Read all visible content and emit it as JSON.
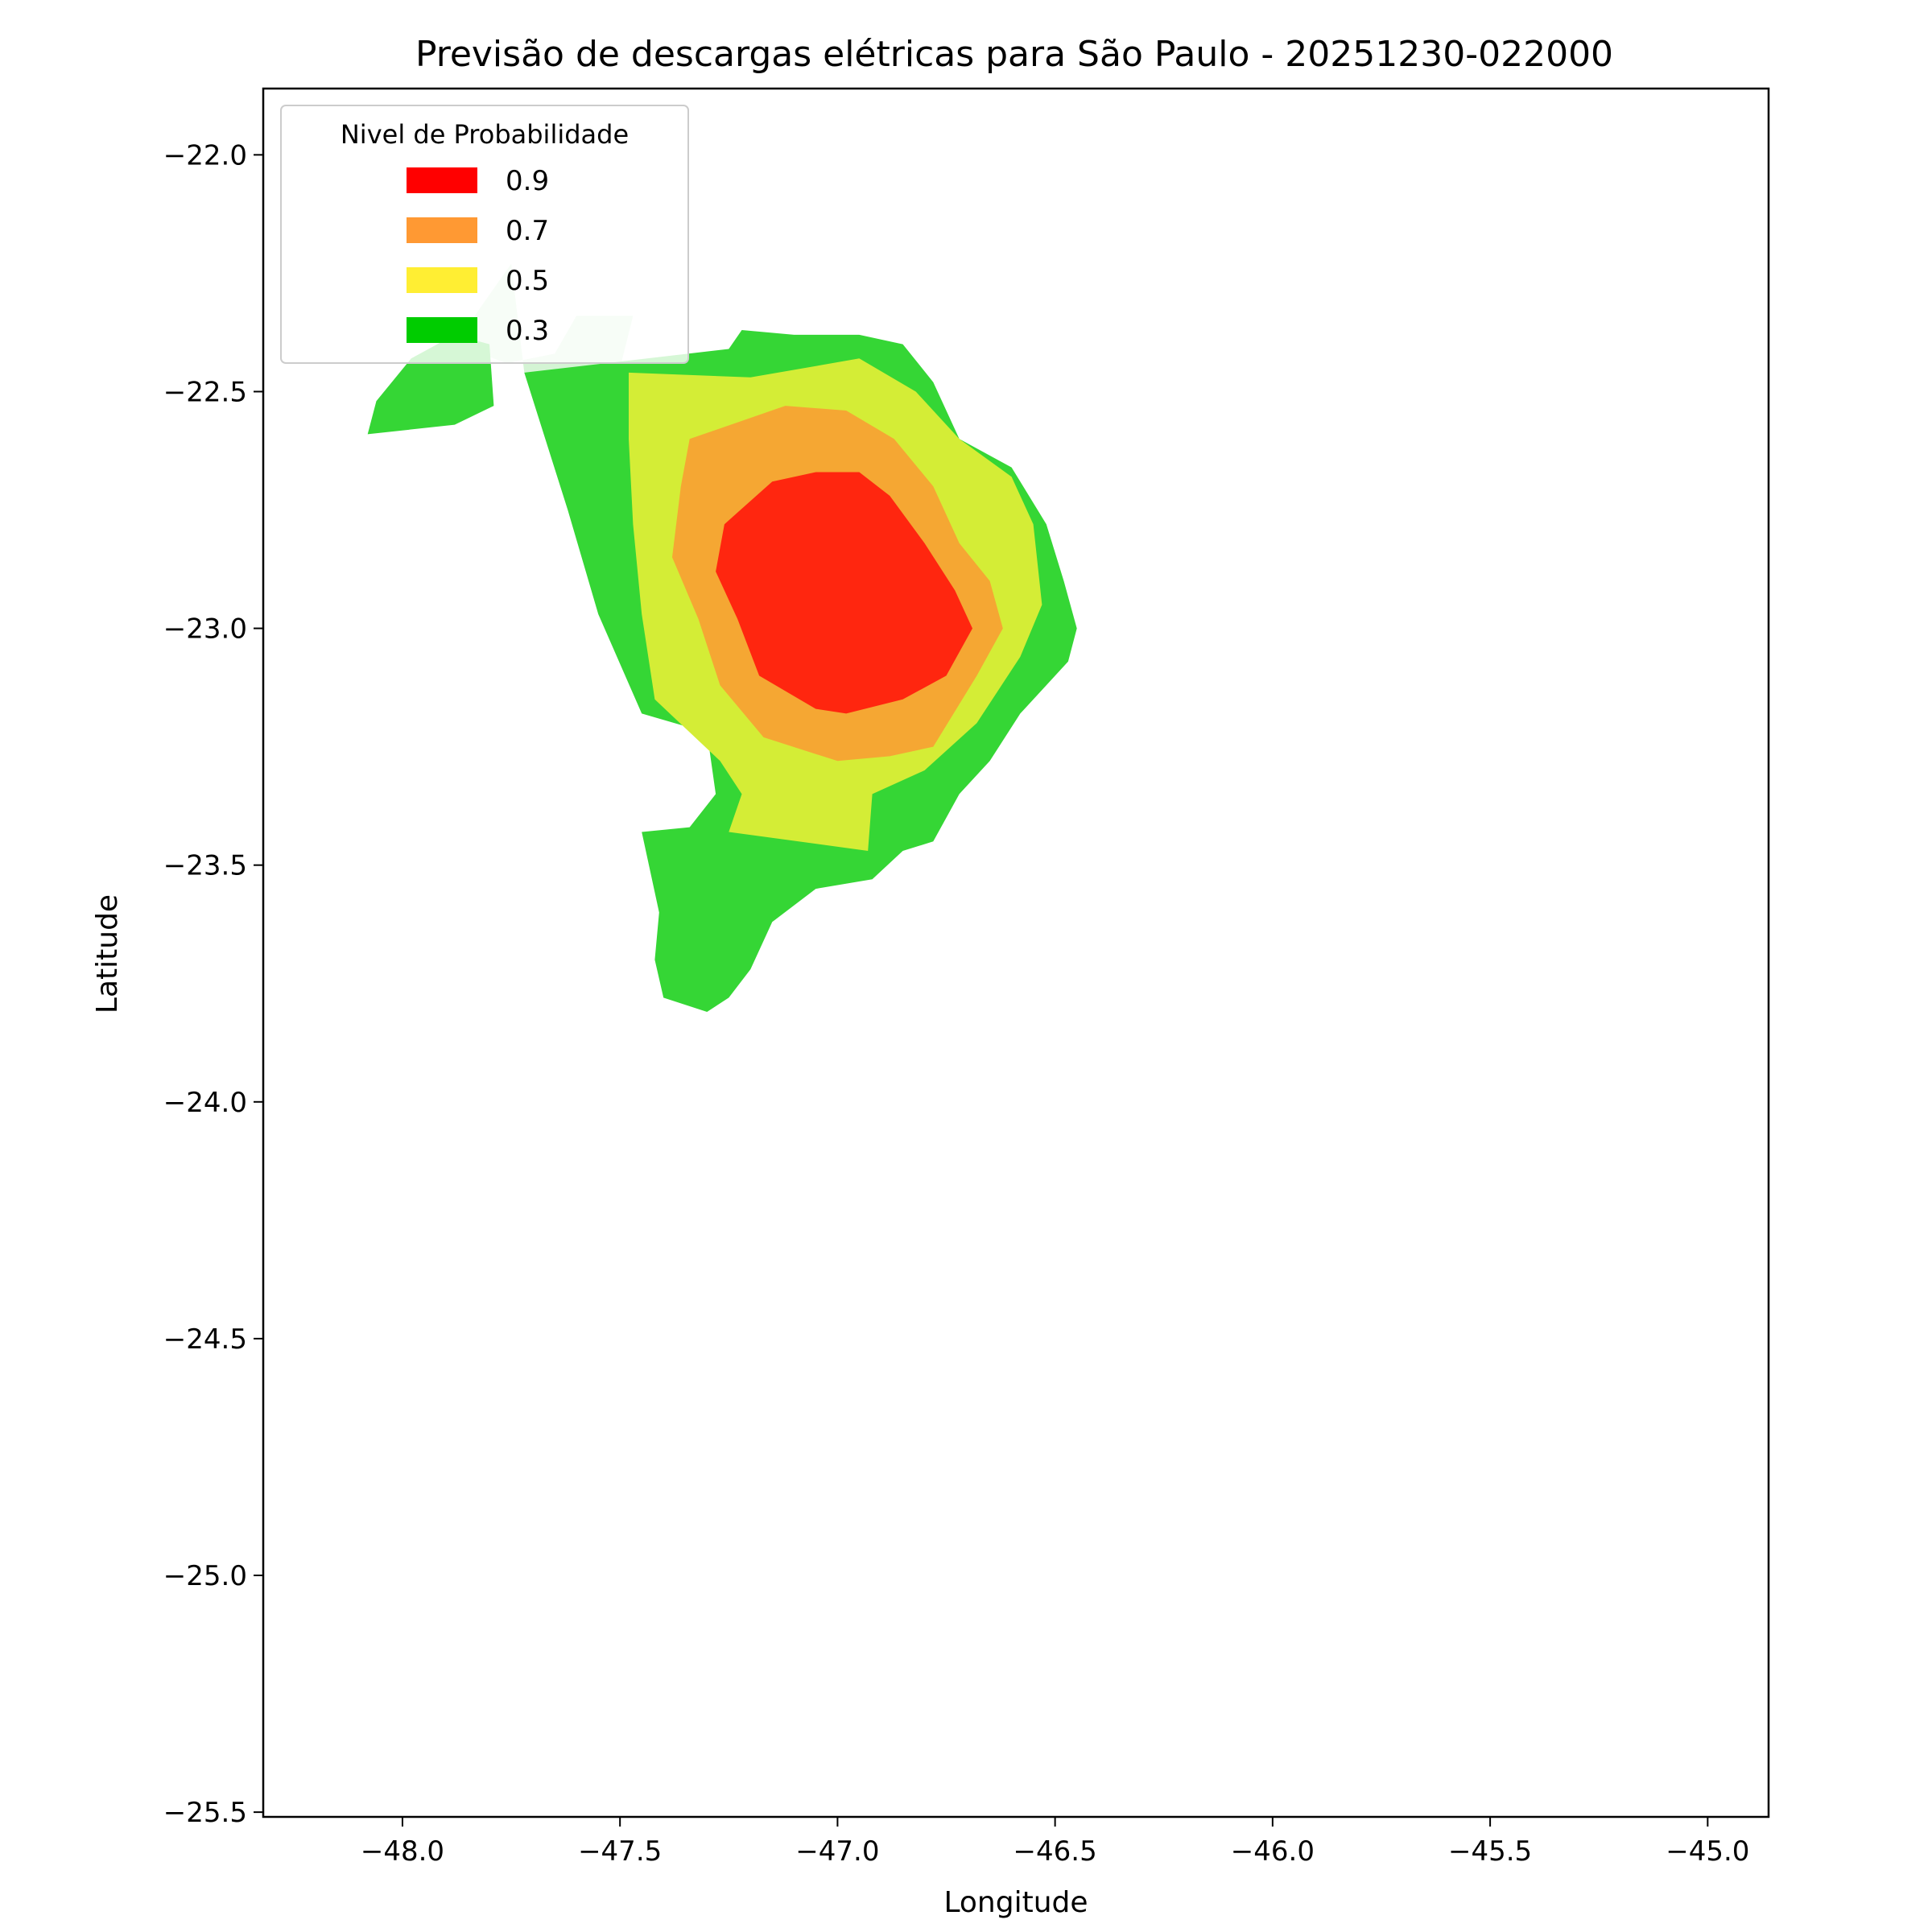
{
  "chart_data": {
    "type": "contour",
    "title": "Previsão de descargas elétricas para São Paulo - 20251230-022000",
    "xlabel": "Longitude",
    "ylabel": "Latitude",
    "xlim": [
      -48.32,
      -44.86
    ],
    "ylim": [
      -25.51,
      -21.86
    ],
    "xticks": [
      -48.0,
      -47.5,
      -47.0,
      -46.5,
      -46.0,
      -45.5,
      -45.0
    ],
    "yticks": [
      -22.0,
      -22.5,
      -23.0,
      -23.5,
      -24.0,
      -24.5,
      -25.0,
      -25.5
    ],
    "xtick_labels": [
      "−48.0",
      "−47.5",
      "−47.0",
      "−46.5",
      "−46.0",
      "−45.5",
      "−45.0"
    ],
    "ytick_labels": [
      "−22.0",
      "−22.5",
      "−23.0",
      "−23.5",
      "−24.0",
      "−24.5",
      "−25.0",
      "−25.5"
    ],
    "grid": false,
    "legend": {
      "title": "Nivel de Probabilidade",
      "placement": "upper-left",
      "entries": [
        {
          "label": "0.9",
          "color": "#ff0000"
        },
        {
          "label": "0.7",
          "color": "#ff9933"
        },
        {
          "label": "0.5",
          "color": "#ffee33"
        },
        {
          "label": "0.3",
          "color": "#00cc00"
        }
      ]
    },
    "regions": [
      {
        "level": "0.1",
        "color": "#d4f4d4",
        "points": [
          [
            -47.75,
            -22.23
          ],
          [
            -47.72,
            -22.46
          ],
          [
            -47.5,
            -22.45
          ],
          [
            -47.47,
            -22.34
          ],
          [
            -47.6,
            -22.34
          ],
          [
            -47.65,
            -22.42
          ],
          [
            -47.76,
            -22.44
          ],
          [
            -47.88,
            -22.4
          ]
        ]
      },
      {
        "level": "0.3",
        "color": "#35d635",
        "points": [
          [
            [
              -47.72,
              -22.46
            ],
            [
              -47.25,
              -22.41
            ],
            [
              -47.22,
              -22.37
            ],
            [
              -47.1,
              -22.38
            ],
            [
              -46.95,
              -22.38
            ],
            [
              -46.85,
              -22.4
            ],
            [
              -46.78,
              -22.48
            ],
            [
              -46.72,
              -22.6
            ],
            [
              -46.6,
              -22.66
            ],
            [
              -46.52,
              -22.78
            ],
            [
              -46.48,
              -22.9
            ],
            [
              -46.45,
              -23.0
            ],
            [
              -46.47,
              -23.07
            ],
            [
              -46.52,
              -23.12
            ],
            [
              -46.58,
              -23.18
            ],
            [
              -46.65,
              -23.28
            ],
            [
              -46.72,
              -23.35
            ],
            [
              -46.78,
              -23.45
            ],
            [
              -46.85,
              -23.47
            ],
            [
              -46.92,
              -23.53
            ],
            [
              -47.05,
              -23.55
            ],
            [
              -47.15,
              -23.62
            ],
            [
              -47.2,
              -23.72
            ],
            [
              -47.25,
              -23.78
            ],
            [
              -47.3,
              -23.81
            ],
            [
              -47.4,
              -23.78
            ],
            [
              -47.42,
              -23.7
            ],
            [
              -47.41,
              -23.6
            ],
            [
              -47.45,
              -23.43
            ],
            [
              -47.34,
              -23.42
            ],
            [
              -47.28,
              -23.35
            ],
            [
              -47.3,
              -23.22
            ],
            [
              -47.45,
              -23.18
            ],
            [
              -47.55,
              -22.97
            ],
            [
              -47.62,
              -22.75
            ]
          ],
          [
            [
              -48.08,
              -22.59
            ],
            [
              -47.88,
              -22.57
            ],
            [
              -47.79,
              -22.53
            ],
            [
              -47.8,
              -22.4
            ],
            [
              -47.88,
              -22.38
            ],
            [
              -47.98,
              -22.43
            ],
            [
              -48.06,
              -22.52
            ]
          ]
        ]
      },
      {
        "level": "0.5",
        "color": "#d4ed36",
        "points": [
          [
            -47.48,
            -22.46
          ],
          [
            -47.2,
            -22.47
          ],
          [
            -46.95,
            -22.43
          ],
          [
            -46.82,
            -22.5
          ],
          [
            -46.72,
            -22.6
          ],
          [
            -46.6,
            -22.68
          ],
          [
            -46.55,
            -22.78
          ],
          [
            -46.53,
            -22.95
          ],
          [
            -46.58,
            -23.06
          ],
          [
            -46.68,
            -23.2
          ],
          [
            -46.8,
            -23.3
          ],
          [
            -46.92,
            -23.35
          ],
          [
            -46.93,
            -23.47
          ],
          [
            -47.25,
            -23.43
          ],
          [
            -47.22,
            -23.35
          ],
          [
            -47.27,
            -23.28
          ],
          [
            -47.42,
            -23.15
          ],
          [
            -47.45,
            -22.97
          ],
          [
            -47.47,
            -22.78
          ],
          [
            -47.48,
            -22.6
          ]
        ]
      },
      {
        "level": "0.7",
        "color": "#f5a733",
        "points": [
          [
            -47.34,
            -22.6
          ],
          [
            -47.12,
            -22.53
          ],
          [
            -46.98,
            -22.54
          ],
          [
            -46.87,
            -22.6
          ],
          [
            -46.78,
            -22.7
          ],
          [
            -46.72,
            -22.82
          ],
          [
            -46.65,
            -22.9
          ],
          [
            -46.62,
            -23.0
          ],
          [
            -46.68,
            -23.1
          ],
          [
            -46.78,
            -23.25
          ],
          [
            -46.88,
            -23.27
          ],
          [
            -47.0,
            -23.28
          ],
          [
            -47.17,
            -23.23
          ],
          [
            -47.27,
            -23.12
          ],
          [
            -47.32,
            -22.98
          ],
          [
            -47.38,
            -22.85
          ],
          [
            -47.36,
            -22.7
          ]
        ]
      },
      {
        "level": "0.9",
        "color": "#ff260f",
        "points": [
          [
            -47.26,
            -22.78
          ],
          [
            -47.15,
            -22.69
          ],
          [
            -47.05,
            -22.67
          ],
          [
            -46.95,
            -22.67
          ],
          [
            -46.88,
            -22.72
          ],
          [
            -46.8,
            -22.82
          ],
          [
            -46.73,
            -22.92
          ],
          [
            -46.69,
            -23.0
          ],
          [
            -46.75,
            -23.1
          ],
          [
            -46.85,
            -23.15
          ],
          [
            -46.98,
            -23.18
          ],
          [
            -47.05,
            -23.17
          ],
          [
            -47.18,
            -23.1
          ],
          [
            -47.23,
            -22.98
          ],
          [
            -47.28,
            -22.88
          ]
        ]
      }
    ]
  }
}
